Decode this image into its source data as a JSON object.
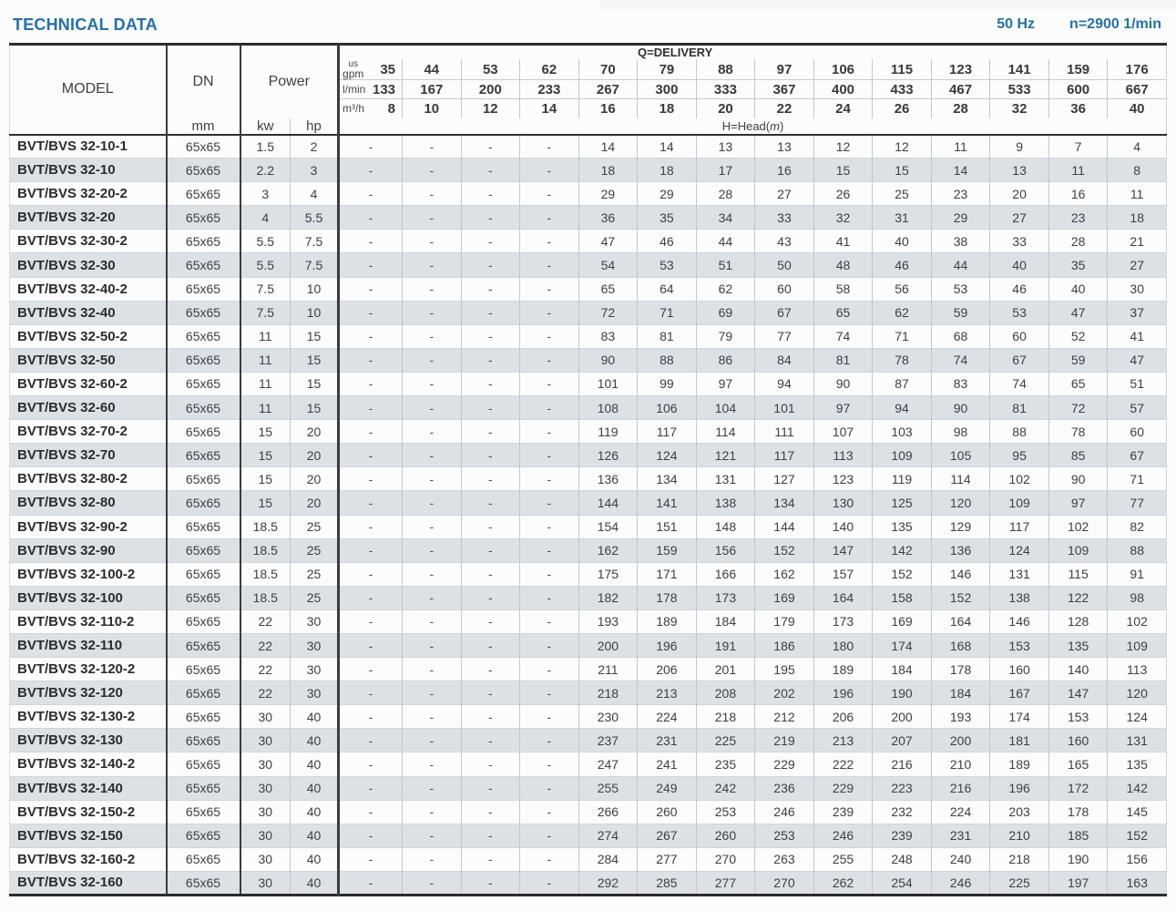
{
  "page": {
    "title": "TECHNICAL DATA",
    "frequency": "50 Hz",
    "speed": "n=2900 1/min"
  },
  "colors": {
    "accent_blue": "#2470a8",
    "row_stripe": "#dce1e6"
  },
  "table": {
    "headers": {
      "model": "MODEL",
      "dn": "DN",
      "dn_unit": "mm",
      "power": "Power",
      "power_units": [
        "kw",
        "hp"
      ],
      "delivery_title": "Q=DELIVERY",
      "head_prefix": "H=Head(",
      "head_unit": "m",
      "head_suffix": ")",
      "unit_rows": [
        {
          "key": "us-gpm",
          "label_lines": [
            "us",
            "gpm"
          ],
          "values": [
            "35",
            "44",
            "53",
            "62",
            "70",
            "79",
            "88",
            "97",
            "106",
            "115",
            "123",
            "141",
            "159",
            "176"
          ]
        },
        {
          "key": "l-min",
          "label_lines": [
            "l/min"
          ],
          "values": [
            "133",
            "167",
            "200",
            "233",
            "267",
            "300",
            "333",
            "367",
            "400",
            "433",
            "467",
            "533",
            "600",
            "667"
          ]
        },
        {
          "key": "m3-h",
          "label_lines": [
            "m³/h"
          ],
          "values": [
            "8",
            "10",
            "12",
            "14",
            "16",
            "18",
            "20",
            "22",
            "24",
            "26",
            "28",
            "32",
            "36",
            "40"
          ]
        }
      ]
    },
    "rows": [
      {
        "model": "BVT/BVS 32-10-1",
        "dn": "65x65",
        "kw": "1.5",
        "hp": "2",
        "head": [
          "-",
          "-",
          "-",
          "-",
          "14",
          "14",
          "13",
          "13",
          "12",
          "12",
          "11",
          "9",
          "7",
          "4"
        ]
      },
      {
        "model": "BVT/BVS 32-10",
        "dn": "65x65",
        "kw": "2.2",
        "hp": "3",
        "head": [
          "-",
          "-",
          "-",
          "-",
          "18",
          "18",
          "17",
          "16",
          "15",
          "15",
          "14",
          "13",
          "11",
          "8"
        ]
      },
      {
        "model": "BVT/BVS 32-20-2",
        "dn": "65x65",
        "kw": "3",
        "hp": "4",
        "head": [
          "-",
          "-",
          "-",
          "-",
          "29",
          "29",
          "28",
          "27",
          "26",
          "25",
          "23",
          "20",
          "16",
          "11"
        ]
      },
      {
        "model": "BVT/BVS 32-20",
        "dn": "65x65",
        "kw": "4",
        "hp": "5.5",
        "head": [
          "-",
          "-",
          "-",
          "-",
          "36",
          "35",
          "34",
          "33",
          "32",
          "31",
          "29",
          "27",
          "23",
          "18"
        ]
      },
      {
        "model": "BVT/BVS 32-30-2",
        "dn": "65x65",
        "kw": "5.5",
        "hp": "7.5",
        "head": [
          "-",
          "-",
          "-",
          "-",
          "47",
          "46",
          "44",
          "43",
          "41",
          "40",
          "38",
          "33",
          "28",
          "21"
        ]
      },
      {
        "model": "BVT/BVS 32-30",
        "dn": "65x65",
        "kw": "5.5",
        "hp": "7.5",
        "head": [
          "-",
          "-",
          "-",
          "-",
          "54",
          "53",
          "51",
          "50",
          "48",
          "46",
          "44",
          "40",
          "35",
          "27"
        ]
      },
      {
        "model": "BVT/BVS 32-40-2",
        "dn": "65x65",
        "kw": "7.5",
        "hp": "10",
        "head": [
          "-",
          "-",
          "-",
          "-",
          "65",
          "64",
          "62",
          "60",
          "58",
          "56",
          "53",
          "46",
          "40",
          "30"
        ]
      },
      {
        "model": "BVT/BVS 32-40",
        "dn": "65x65",
        "kw": "7.5",
        "hp": "10",
        "head": [
          "-",
          "-",
          "-",
          "-",
          "72",
          "71",
          "69",
          "67",
          "65",
          "62",
          "59",
          "53",
          "47",
          "37"
        ]
      },
      {
        "model": "BVT/BVS 32-50-2",
        "dn": "65x65",
        "kw": "11",
        "hp": "15",
        "head": [
          "-",
          "-",
          "-",
          "-",
          "83",
          "81",
          "79",
          "77",
          "74",
          "71",
          "68",
          "60",
          "52",
          "41"
        ]
      },
      {
        "model": "BVT/BVS 32-50",
        "dn": "65x65",
        "kw": "11",
        "hp": "15",
        "head": [
          "-",
          "-",
          "-",
          "-",
          "90",
          "88",
          "86",
          "84",
          "81",
          "78",
          "74",
          "67",
          "59",
          "47"
        ]
      },
      {
        "model": "BVT/BVS 32-60-2",
        "dn": "65x65",
        "kw": "11",
        "hp": "15",
        "head": [
          "-",
          "-",
          "-",
          "-",
          "101",
          "99",
          "97",
          "94",
          "90",
          "87",
          "83",
          "74",
          "65",
          "51"
        ]
      },
      {
        "model": "BVT/BVS 32-60",
        "dn": "65x65",
        "kw": "11",
        "hp": "15",
        "head": [
          "-",
          "-",
          "-",
          "-",
          "108",
          "106",
          "104",
          "101",
          "97",
          "94",
          "90",
          "81",
          "72",
          "57"
        ]
      },
      {
        "model": "BVT/BVS 32-70-2",
        "dn": "65x65",
        "kw": "15",
        "hp": "20",
        "head": [
          "-",
          "-",
          "-",
          "-",
          "119",
          "117",
          "114",
          "111",
          "107",
          "103",
          "98",
          "88",
          "78",
          "60"
        ]
      },
      {
        "model": "BVT/BVS 32-70",
        "dn": "65x65",
        "kw": "15",
        "hp": "20",
        "head": [
          "-",
          "-",
          "-",
          "-",
          "126",
          "124",
          "121",
          "117",
          "113",
          "109",
          "105",
          "95",
          "85",
          "67"
        ]
      },
      {
        "model": "BVT/BVS 32-80-2",
        "dn": "65x65",
        "kw": "15",
        "hp": "20",
        "head": [
          "-",
          "-",
          "-",
          "-",
          "136",
          "134",
          "131",
          "127",
          "123",
          "119",
          "114",
          "102",
          "90",
          "71"
        ]
      },
      {
        "model": "BVT/BVS 32-80",
        "dn": "65x65",
        "kw": "15",
        "hp": "20",
        "head": [
          "-",
          "-",
          "-",
          "-",
          "144",
          "141",
          "138",
          "134",
          "130",
          "125",
          "120",
          "109",
          "97",
          "77"
        ]
      },
      {
        "model": "BVT/BVS 32-90-2",
        "dn": "65x65",
        "kw": "18.5",
        "hp": "25",
        "head": [
          "-",
          "-",
          "-",
          "-",
          "154",
          "151",
          "148",
          "144",
          "140",
          "135",
          "129",
          "117",
          "102",
          "82"
        ]
      },
      {
        "model": "BVT/BVS 32-90",
        "dn": "65x65",
        "kw": "18.5",
        "hp": "25",
        "head": [
          "-",
          "-",
          "-",
          "-",
          "162",
          "159",
          "156",
          "152",
          "147",
          "142",
          "136",
          "124",
          "109",
          "88"
        ]
      },
      {
        "model": "BVT/BVS 32-100-2",
        "dn": "65x65",
        "kw": "18.5",
        "hp": "25",
        "head": [
          "-",
          "-",
          "-",
          "-",
          "175",
          "171",
          "166",
          "162",
          "157",
          "152",
          "146",
          "131",
          "115",
          "91"
        ]
      },
      {
        "model": "BVT/BVS 32-100",
        "dn": "65x65",
        "kw": "18.5",
        "hp": "25",
        "head": [
          "-",
          "-",
          "-",
          "-",
          "182",
          "178",
          "173",
          "169",
          "164",
          "158",
          "152",
          "138",
          "122",
          "98"
        ]
      },
      {
        "model": "BVT/BVS 32-110-2",
        "dn": "65x65",
        "kw": "22",
        "hp": "30",
        "head": [
          "-",
          "-",
          "-",
          "-",
          "193",
          "189",
          "184",
          "179",
          "173",
          "169",
          "164",
          "146",
          "128",
          "102"
        ]
      },
      {
        "model": "BVT/BVS 32-110",
        "dn": "65x65",
        "kw": "22",
        "hp": "30",
        "head": [
          "-",
          "-",
          "-",
          "-",
          "200",
          "196",
          "191",
          "186",
          "180",
          "174",
          "168",
          "153",
          "135",
          "109"
        ]
      },
      {
        "model": "BVT/BVS 32-120-2",
        "dn": "65x65",
        "kw": "22",
        "hp": "30",
        "head": [
          "-",
          "-",
          "-",
          "-",
          "211",
          "206",
          "201",
          "195",
          "189",
          "184",
          "178",
          "160",
          "140",
          "113"
        ]
      },
      {
        "model": "BVT/BVS 32-120",
        "dn": "65x65",
        "kw": "22",
        "hp": "30",
        "head": [
          "-",
          "-",
          "-",
          "-",
          "218",
          "213",
          "208",
          "202",
          "196",
          "190",
          "184",
          "167",
          "147",
          "120"
        ]
      },
      {
        "model": "BVT/BVS 32-130-2",
        "dn": "65x65",
        "kw": "30",
        "hp": "40",
        "head": [
          "-",
          "-",
          "-",
          "-",
          "230",
          "224",
          "218",
          "212",
          "206",
          "200",
          "193",
          "174",
          "153",
          "124"
        ]
      },
      {
        "model": "BVT/BVS 32-130",
        "dn": "65x65",
        "kw": "30",
        "hp": "40",
        "head": [
          "-",
          "-",
          "-",
          "-",
          "237",
          "231",
          "225",
          "219",
          "213",
          "207",
          "200",
          "181",
          "160",
          "131"
        ]
      },
      {
        "model": "BVT/BVS 32-140-2",
        "dn": "65x65",
        "kw": "30",
        "hp": "40",
        "head": [
          "-",
          "-",
          "-",
          "-",
          "247",
          "241",
          "235",
          "229",
          "222",
          "216",
          "210",
          "189",
          "165",
          "135"
        ]
      },
      {
        "model": "BVT/BVS 32-140",
        "dn": "65x65",
        "kw": "30",
        "hp": "40",
        "head": [
          "-",
          "-",
          "-",
          "-",
          "255",
          "249",
          "242",
          "236",
          "229",
          "223",
          "216",
          "196",
          "172",
          "142"
        ]
      },
      {
        "model": "BVT/BVS 32-150-2",
        "dn": "65x65",
        "kw": "30",
        "hp": "40",
        "head": [
          "-",
          "-",
          "-",
          "-",
          "266",
          "260",
          "253",
          "246",
          "239",
          "232",
          "224",
          "203",
          "178",
          "145"
        ]
      },
      {
        "model": "BVT/BVS 32-150",
        "dn": "65x65",
        "kw": "30",
        "hp": "40",
        "head": [
          "-",
          "-",
          "-",
          "-",
          "274",
          "267",
          "260",
          "253",
          "246",
          "239",
          "231",
          "210",
          "185",
          "152"
        ]
      },
      {
        "model": "BVT/BVS 32-160-2",
        "dn": "65x65",
        "kw": "30",
        "hp": "40",
        "head": [
          "-",
          "-",
          "-",
          "-",
          "284",
          "277",
          "270",
          "263",
          "255",
          "248",
          "240",
          "218",
          "190",
          "156"
        ]
      },
      {
        "model": "BVT/BVS 32-160",
        "dn": "65x65",
        "kw": "30",
        "hp": "40",
        "head": [
          "-",
          "-",
          "-",
          "-",
          "292",
          "285",
          "277",
          "270",
          "262",
          "254",
          "246",
          "225",
          "197",
          "163"
        ]
      }
    ]
  }
}
